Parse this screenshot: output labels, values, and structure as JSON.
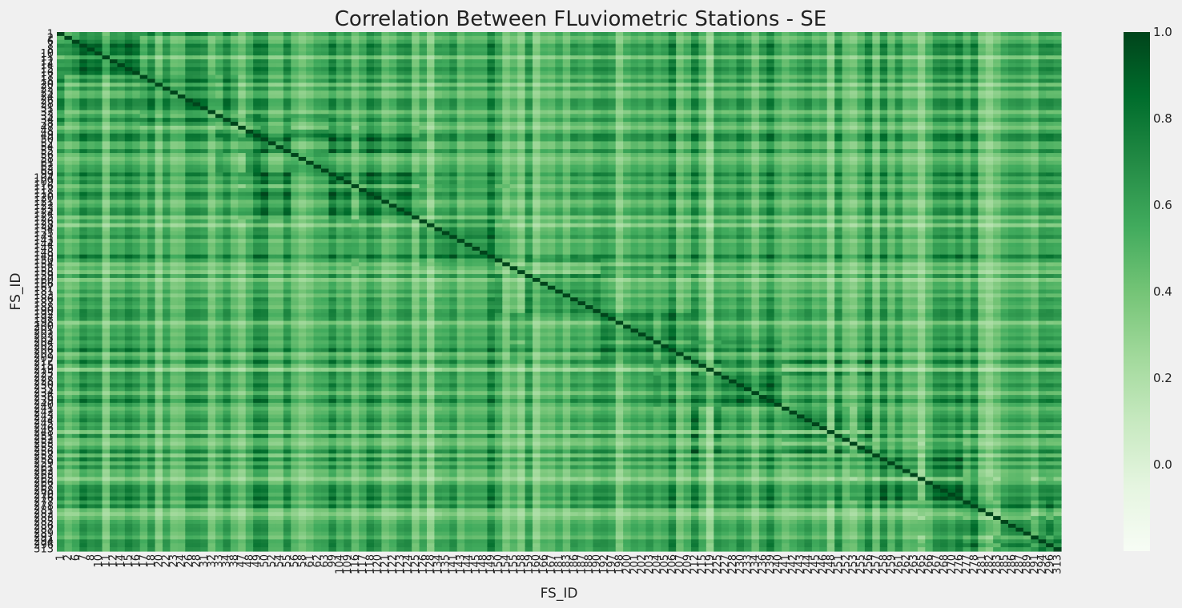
{
  "chart_data": {
    "type": "heatmap",
    "title": "Correlation Between FLuviometric Stations - SE",
    "xlabel": "FS_ID",
    "ylabel": "FS_ID",
    "labels": [
      "1",
      "2",
      "6",
      "7",
      "8",
      "10",
      "11",
      "12",
      "14",
      "15",
      "16",
      "17",
      "18",
      "20",
      "22",
      "23",
      "24",
      "26",
      "28",
      "31",
      "32",
      "33",
      "34",
      "38",
      "47",
      "48",
      "49",
      "50",
      "52",
      "54",
      "55",
      "56",
      "58",
      "61",
      "62",
      "63",
      "99",
      "104",
      "109",
      "116",
      "117",
      "118",
      "120",
      "121",
      "122",
      "123",
      "124",
      "125",
      "126",
      "128",
      "134",
      "135",
      "141",
      "143",
      "144",
      "145",
      "148",
      "149",
      "150",
      "154",
      "155",
      "158",
      "159",
      "160",
      "166",
      "167",
      "181",
      "183",
      "186",
      "187",
      "188",
      "190",
      "192",
      "197",
      "198",
      "200",
      "201",
      "202",
      "203",
      "204",
      "205",
      "206",
      "207",
      "209",
      "212",
      "215",
      "219",
      "225",
      "227",
      "228",
      "230",
      "233",
      "234",
      "236",
      "239",
      "240",
      "241",
      "242",
      "243",
      "244",
      "245",
      "246",
      "248",
      "251",
      "252",
      "253",
      "255",
      "256",
      "257",
      "258",
      "259",
      "261",
      "262",
      "263",
      "265",
      "266",
      "267",
      "268",
      "270",
      "276",
      "277",
      "278",
      "281",
      "282",
      "283",
      "285",
      "286",
      "287",
      "289",
      "291",
      "294",
      "296",
      "313"
    ],
    "xtick_labels": [
      "1",
      "2",
      "6",
      "7",
      "8",
      "10",
      "11",
      "12",
      "14",
      "15",
      "16",
      "17",
      "18",
      "20",
      "22",
      "23",
      "24",
      "26",
      "28",
      "31",
      "32",
      "33",
      "34",
      "38",
      "47",
      "48",
      "49",
      "50",
      "52",
      "54",
      "55",
      "56",
      "58",
      "61",
      "62",
      "63",
      "99",
      "104",
      "109",
      "116",
      "117",
      "118",
      "120",
      "121",
      "122",
      "123",
      "124",
      "125",
      "126",
      "128",
      "134",
      "135",
      "141",
      "143",
      "144",
      "145",
      "148",
      "149",
      "150",
      "154",
      "155",
      "158",
      "159",
      "160",
      "166",
      "167",
      "181",
      "183",
      "186",
      "187",
      "188",
      "190",
      "192",
      "197",
      "198",
      "200",
      "201",
      "202",
      "203",
      "204",
      "205",
      "206",
      "207",
      "209",
      "212",
      "215",
      "219",
      "225",
      "227",
      "228",
      "230",
      "233",
      "234",
      "236",
      "239",
      "240",
      "241",
      "242",
      "243",
      "244",
      "245",
      "246",
      "248",
      "251",
      "252",
      "253",
      "255",
      "256",
      "257",
      "258",
      "259",
      "261",
      "262",
      "263",
      "265",
      "266",
      "267",
      "268",
      "270",
      "276",
      "277",
      "278",
      "281",
      "282",
      "283",
      "285",
      "286",
      "287",
      "289",
      "291",
      "294",
      "296",
      "313"
    ],
    "ytick_labels": [
      "1",
      "2",
      "6",
      "7",
      "8",
      "10",
      "11",
      "12",
      "14",
      "15",
      "16",
      "17",
      "18",
      "20",
      "22",
      "23",
      "24",
      "26",
      "28",
      "31",
      "32",
      "33",
      "34",
      "38",
      "47",
      "48",
      "49",
      "50",
      "52",
      "54",
      "55",
      "56",
      "58",
      "61",
      "62",
      "63",
      "99",
      "104",
      "109",
      "116",
      "117",
      "118",
      "120",
      "121",
      "122",
      "123",
      "124",
      "125",
      "126",
      "128",
      "134",
      "135",
      "141",
      "143",
      "144",
      "145",
      "148",
      "149",
      "150",
      "154",
      "155",
      "158",
      "159",
      "160",
      "166",
      "167",
      "181",
      "183",
      "186",
      "187",
      "188",
      "190",
      "192",
      "197",
      "198",
      "200",
      "201",
      "202",
      "203",
      "204",
      "205",
      "206",
      "207",
      "209",
      "212",
      "215",
      "219",
      "225",
      "227",
      "228",
      "230",
      "233",
      "234",
      "236",
      "239",
      "240",
      "241",
      "242",
      "243",
      "244",
      "245",
      "246",
      "248",
      "251",
      "252",
      "253",
      "255",
      "256",
      "257",
      "258",
      "259",
      "261",
      "262",
      "263",
      "265",
      "266",
      "267",
      "268",
      "270",
      "276",
      "277",
      "278",
      "281",
      "282",
      "283",
      "285",
      "286",
      "287",
      "289",
      "291",
      "294",
      "296",
      "313"
    ],
    "color_range": [
      -0.2,
      1.0
    ],
    "colorbar_ticks": [
      "0.0",
      "0.2",
      "0.4",
      "0.6",
      "0.8",
      "1.0"
    ],
    "colormap": "Greens",
    "color_stops": [
      "#f7fcf5",
      "#e5f5e0",
      "#c7e9c0",
      "#a1d99b",
      "#74c476",
      "#41ab5d",
      "#238b45",
      "#006d2c",
      "#00441b"
    ],
    "diagonal": 1.0,
    "grid": false,
    "colorbar_position": "right"
  }
}
